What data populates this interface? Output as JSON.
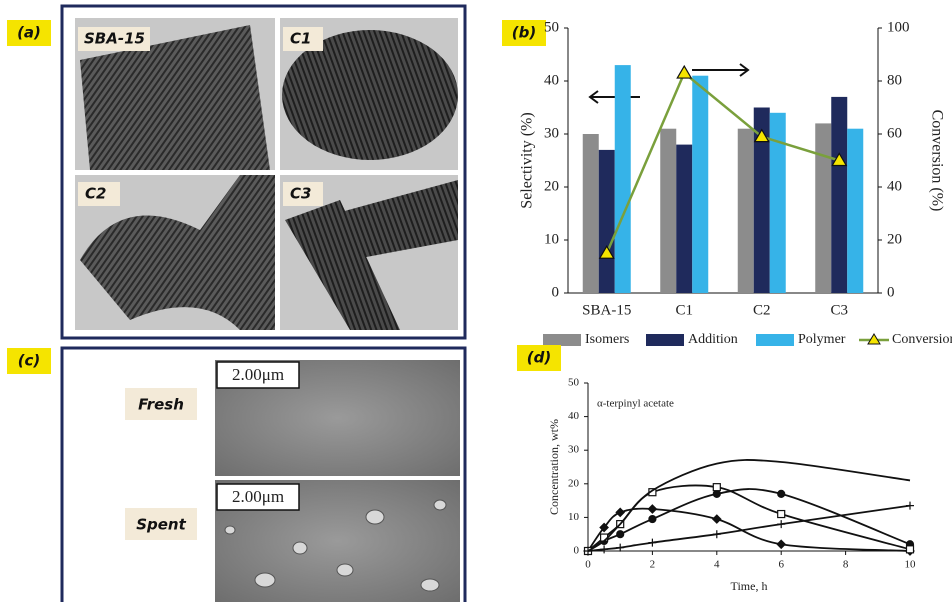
{
  "panel_a": {
    "label": "(a)",
    "images": [
      "SBA-15",
      "C1",
      "C2",
      "C3"
    ]
  },
  "panel_c": {
    "label": "(c)",
    "samples": [
      "Fresh",
      "Spent"
    ],
    "scale_bars": [
      "2.00μm",
      "2.00μm"
    ]
  },
  "chart_data": [
    {
      "type": "bar",
      "panel_label": "(b)",
      "categories": [
        "SBA-15",
        "C1",
        "C2",
        "C3"
      ],
      "series": [
        {
          "name": "Isomers",
          "color": "#8c8c8c",
          "values": [
            30,
            31,
            31,
            32
          ]
        },
        {
          "name": "Addition",
          "color": "#1f2a5c",
          "values": [
            27,
            28,
            35,
            37
          ]
        },
        {
          "name": "Polymer",
          "color": "#36b3e8",
          "values": [
            43,
            41,
            34,
            31
          ]
        },
        {
          "name": "Conversion",
          "type": "line",
          "axis": "y2",
          "color": "#7aa03c",
          "marker_color": "#f5e400",
          "values": [
            15,
            83,
            59,
            50
          ]
        }
      ],
      "ylabel": "Selectivity (%)",
      "y2label": "Conversion (%)",
      "ylim": [
        0,
        50
      ],
      "yticks": [
        0,
        10,
        20,
        30,
        40,
        50
      ],
      "y2lim": [
        0,
        100
      ],
      "y2ticks": [
        0,
        20,
        40,
        60,
        80,
        100
      ],
      "legend": "bottom",
      "grid": false
    },
    {
      "type": "line",
      "panel_label": "(d)",
      "annotation": "α-terpinyl acetate",
      "x": [
        0,
        0.5,
        1,
        2,
        4,
        6,
        10
      ],
      "series": [
        {
          "color": "#111",
          "marker": "diamond",
          "values": [
            0,
            7,
            11.5,
            12.5,
            9.5,
            2,
            0
          ]
        },
        {
          "color": "#111",
          "marker": "circle",
          "values": [
            0,
            3,
            5,
            9.5,
            17,
            17,
            2
          ]
        },
        {
          "color": "#111",
          "marker": "square",
          "values": [
            0,
            4,
            8,
            17.5,
            19,
            11,
            0.5
          ]
        },
        {
          "color": "#111",
          "marker": "plus",
          "values": [
            0,
            0.5,
            1,
            2.5,
            5,
            8,
            13.5
          ]
        },
        {
          "color": "#111",
          "marker": "none",
          "values": [
            0,
            3,
            8,
            18,
            26,
            26.5,
            21
          ]
        }
      ],
      "xlabel": "Time, h",
      "ylabel": "Concentration, wt%",
      "xlim": [
        0,
        10
      ],
      "xticks": [
        0,
        2,
        4,
        6,
        8,
        10
      ],
      "ylim": [
        0,
        50
      ],
      "yticks": [
        0,
        10,
        20,
        30,
        40,
        50
      ],
      "grid": false
    }
  ]
}
